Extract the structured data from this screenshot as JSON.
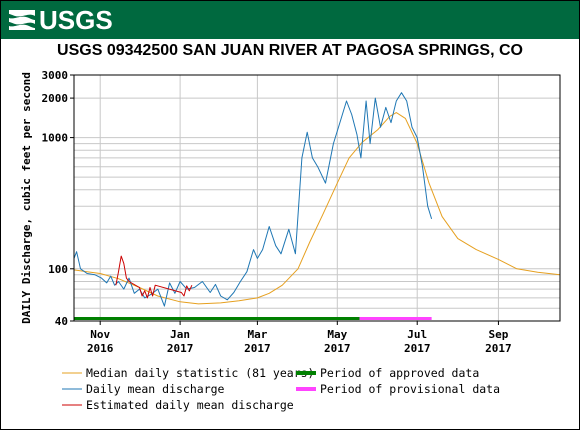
{
  "header": {
    "agency": "USGS",
    "brand_color": "#00693f"
  },
  "chart_data": {
    "type": "line",
    "title": "USGS 09342500 SAN JUAN RIVER AT PAGOSA SPRINGS, CO",
    "ylabel": "DAILY Discharge, cubic feet per second",
    "xlabel": "",
    "y_scale": "log",
    "ylim": [
      40,
      3000
    ],
    "xlim": [
      "2016-10-12",
      "2017-10-18"
    ],
    "grid": true,
    "y_ticks": [
      {
        "value": 40,
        "label": "40"
      },
      {
        "value": 100,
        "label": "100"
      },
      {
        "value": 1000,
        "label": "1000"
      },
      {
        "value": 2000,
        "label": "2000"
      },
      {
        "value": 3000,
        "label": "3000"
      }
    ],
    "x_ticks": [
      {
        "date": "2016-11-01",
        "month": "Nov",
        "year": "2016"
      },
      {
        "date": "2017-01-01",
        "month": "Jan",
        "year": "2017"
      },
      {
        "date": "2017-03-01",
        "month": "Mar",
        "year": "2017"
      },
      {
        "date": "2017-05-01",
        "month": "May",
        "year": "2017"
      },
      {
        "date": "2017-07-01",
        "month": "Jul",
        "year": "2017"
      },
      {
        "date": "2017-09-01",
        "month": "Sep",
        "year": "2017"
      }
    ],
    "series": [
      {
        "name": "Median daily statistic (81 years)",
        "color": "#e6a020",
        "points": [
          [
            "2016-10-12",
            98
          ],
          [
            "2016-10-22",
            95
          ],
          [
            "2016-11-01",
            92
          ],
          [
            "2016-11-15",
            84
          ],
          [
            "2016-12-01",
            72
          ],
          [
            "2016-12-15",
            62
          ],
          [
            "2017-01-01",
            56
          ],
          [
            "2017-01-15",
            54
          ],
          [
            "2017-02-01",
            55
          ],
          [
            "2017-02-15",
            57
          ],
          [
            "2017-03-01",
            60
          ],
          [
            "2017-03-10",
            65
          ],
          [
            "2017-03-20",
            75
          ],
          [
            "2017-04-01",
            100
          ],
          [
            "2017-04-10",
            160
          ],
          [
            "2017-04-20",
            260
          ],
          [
            "2017-05-01",
            450
          ],
          [
            "2017-05-10",
            700
          ],
          [
            "2017-05-20",
            920
          ],
          [
            "2017-06-01",
            1150
          ],
          [
            "2017-06-10",
            1450
          ],
          [
            "2017-06-15",
            1550
          ],
          [
            "2017-06-22",
            1400
          ],
          [
            "2017-07-01",
            900
          ],
          [
            "2017-07-10",
            450
          ],
          [
            "2017-07-20",
            250
          ],
          [
            "2017-08-01",
            170
          ],
          [
            "2017-08-15",
            140
          ],
          [
            "2017-09-01",
            118
          ],
          [
            "2017-09-15",
            100
          ],
          [
            "2017-10-01",
            94
          ],
          [
            "2017-10-18",
            90
          ]
        ]
      },
      {
        "name": "Daily mean discharge",
        "color": "#1f77b4",
        "points": [
          [
            "2016-10-12",
            120
          ],
          [
            "2016-10-14",
            135
          ],
          [
            "2016-10-17",
            100
          ],
          [
            "2016-10-22",
            92
          ],
          [
            "2016-10-28",
            90
          ],
          [
            "2016-11-02",
            85
          ],
          [
            "2016-11-06",
            78
          ],
          [
            "2016-11-09",
            88
          ],
          [
            "2016-11-12",
            75
          ],
          [
            "2016-11-15",
            80
          ],
          [
            "2016-11-19",
            70
          ],
          [
            "2016-11-23",
            85
          ],
          [
            "2016-11-27",
            65
          ],
          [
            "2016-12-01",
            70
          ],
          [
            "2016-12-05",
            60
          ],
          [
            "2016-12-10",
            64
          ],
          [
            "2016-12-15",
            70
          ],
          [
            "2016-12-20",
            52
          ],
          [
            "2016-12-24",
            78
          ],
          [
            "2016-12-28",
            65
          ],
          [
            "2017-01-01",
            80
          ],
          [
            "2017-01-06",
            70
          ],
          [
            "2017-01-12",
            72
          ],
          [
            "2017-01-18",
            80
          ],
          [
            "2017-01-24",
            66
          ],
          [
            "2017-01-28",
            76
          ],
          [
            "2017-02-01",
            62
          ],
          [
            "2017-02-06",
            58
          ],
          [
            "2017-02-11",
            66
          ],
          [
            "2017-02-16",
            80
          ],
          [
            "2017-02-21",
            95
          ],
          [
            "2017-02-26",
            140
          ],
          [
            "2017-03-01",
            120
          ],
          [
            "2017-03-05",
            140
          ],
          [
            "2017-03-10",
            210
          ],
          [
            "2017-03-15",
            150
          ],
          [
            "2017-03-19",
            130
          ],
          [
            "2017-03-25",
            200
          ],
          [
            "2017-03-30",
            130
          ],
          [
            "2017-04-04",
            700
          ],
          [
            "2017-04-08",
            1100
          ],
          [
            "2017-04-12",
            700
          ],
          [
            "2017-04-16",
            600
          ],
          [
            "2017-04-22",
            450
          ],
          [
            "2017-04-28",
            900
          ],
          [
            "2017-05-03",
            1300
          ],
          [
            "2017-05-08",
            1900
          ],
          [
            "2017-05-12",
            1500
          ],
          [
            "2017-05-16",
            1050
          ],
          [
            "2017-05-19",
            700
          ],
          [
            "2017-05-23",
            1900
          ],
          [
            "2017-05-26",
            900
          ],
          [
            "2017-05-30",
            2000
          ],
          [
            "2017-06-03",
            1200
          ],
          [
            "2017-06-07",
            1700
          ],
          [
            "2017-06-11",
            1300
          ],
          [
            "2017-06-15",
            1900
          ],
          [
            "2017-06-19",
            2200
          ],
          [
            "2017-06-23",
            1900
          ],
          [
            "2017-06-27",
            1200
          ],
          [
            "2017-07-01",
            1000
          ],
          [
            "2017-07-05",
            600
          ],
          [
            "2017-07-09",
            300
          ],
          [
            "2017-07-12",
            240
          ]
        ]
      },
      {
        "name": "Estimated daily mean discharge",
        "color": "#cc0000",
        "points": [
          [
            "2016-11-13",
            75
          ],
          [
            "2016-11-15",
            95
          ],
          [
            "2016-11-17",
            125
          ],
          [
            "2016-11-19",
            110
          ],
          [
            "2016-11-21",
            85
          ],
          [
            "2016-11-23",
            80
          ],
          [
            "2016-12-01",
            72
          ],
          [
            "2016-12-03",
            62
          ],
          [
            "2016-12-05",
            68
          ],
          [
            "2016-12-07",
            60
          ],
          [
            "2016-12-09",
            72
          ],
          [
            "2016-12-11",
            62
          ],
          [
            "2016-12-13",
            75
          ],
          [
            "2017-01-02",
            66
          ],
          [
            "2017-01-04",
            62
          ],
          [
            "2017-01-06",
            74
          ],
          [
            "2017-01-08",
            68
          ],
          [
            "2017-01-10",
            75
          ]
        ]
      }
    ],
    "periods": [
      {
        "name": "Period of approved data",
        "color": "#008000",
        "from": "2016-10-12",
        "to": "2017-05-18"
      },
      {
        "name": "Period of provisional data",
        "color": "#ff44ff",
        "from": "2017-05-18",
        "to": "2017-07-12"
      }
    ],
    "legend": {
      "placement": "bottom",
      "items": [
        {
          "label": "Median daily statistic (81 years)",
          "color": "#e6a020",
          "kind": "line"
        },
        {
          "label": "Daily mean discharge",
          "color": "#1f77b4",
          "kind": "line"
        },
        {
          "label": "Estimated daily mean discharge",
          "color": "#cc0000",
          "kind": "line"
        },
        {
          "label": "Period of approved data",
          "color": "#008000",
          "kind": "bar"
        },
        {
          "label": "Period of provisional data",
          "color": "#ff44ff",
          "kind": "bar"
        }
      ]
    }
  }
}
